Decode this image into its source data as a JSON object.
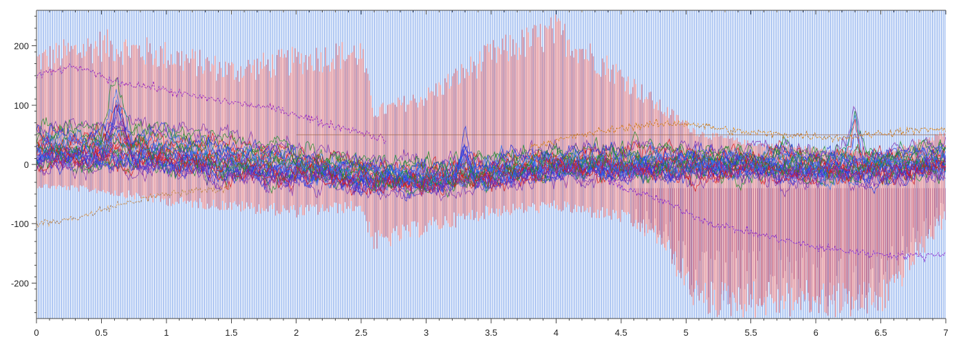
{
  "chart_data": {
    "type": "line",
    "title": "",
    "xlabel": "",
    "ylabel": "",
    "xlim": [
      0,
      7
    ],
    "ylim": [
      -260,
      260
    ],
    "x_ticks": [
      0,
      0.5,
      1,
      1.5,
      2,
      2.5,
      3,
      3.5,
      4,
      4.5,
      5,
      5.5,
      6,
      6.5,
      7
    ],
    "x_tick_labels": [
      "0",
      "0.5",
      "1",
      "1.5",
      "2",
      "2.5",
      "3",
      "3.5",
      "4",
      "4.5",
      "5",
      "5.5",
      "6",
      "6.5",
      "7"
    ],
    "y_ticks": [
      200,
      100,
      0,
      -100,
      -200
    ],
    "y_tick_labels": [
      "200",
      "100",
      "0",
      "-100",
      "-200"
    ],
    "grid": false,
    "legend": "none",
    "colors": {
      "background_bars": "#7fa6ec",
      "envelope": "#f08a8a",
      "dense_band": [
        "#1f2fe0",
        "#d81818",
        "#1c8a2a",
        "#7a2fb0",
        "#2a6ef0"
      ],
      "trace_upper": "#9a2fc0",
      "trace_lower": "#c08a50",
      "trace_orange": "#d08020",
      "trace_purple_low": "#8a2fd0",
      "reference_line": "#9a6040"
    },
    "series": [
      {
        "role": "upper-drifting-trace",
        "x": [
          0,
          0.3,
          0.6,
          0.9,
          1.2,
          1.5,
          1.8,
          2.0,
          2.2,
          2.5,
          2.7
        ],
        "y": [
          150,
          165,
          140,
          130,
          115,
          105,
          95,
          85,
          70,
          55,
          40
        ]
      },
      {
        "role": "lower-left-trace",
        "x": [
          0,
          0.2,
          0.4,
          0.6,
          0.8,
          1.0,
          1.2,
          1.5
        ],
        "y": [
          -100,
          -95,
          -85,
          -70,
          -60,
          -50,
          -45,
          -40
        ]
      },
      {
        "role": "right-orange-trace",
        "x": [
          3.8,
          4.2,
          4.6,
          5.0,
          5.4,
          5.8,
          6.2,
          6.6,
          7.0
        ],
        "y": [
          30,
          50,
          65,
          70,
          55,
          50,
          45,
          55,
          60
        ]
      },
      {
        "role": "lower-right-purple-trace",
        "x": [
          4.4,
          4.8,
          5.2,
          5.6,
          6.0,
          6.4,
          6.8,
          7.0
        ],
        "y": [
          -30,
          -60,
          -100,
          -120,
          -140,
          -150,
          -155,
          -150
        ]
      },
      {
        "role": "reference-line",
        "x": [
          2.0,
          7.0
        ],
        "y": [
          50,
          50
        ]
      },
      {
        "role": "center-band-mean",
        "x": [
          0,
          0.5,
          1.0,
          1.5,
          2.0,
          2.5,
          3.0,
          3.5,
          4.0,
          4.5,
          5.0,
          5.5,
          6.0,
          6.5,
          7.0
        ],
        "y": [
          30,
          30,
          25,
          10,
          0,
          -15,
          -20,
          -10,
          5,
          5,
          5,
          5,
          0,
          0,
          10
        ]
      }
    ],
    "envelope": {
      "x": [
        0,
        0.5,
        1.0,
        1.5,
        2.0,
        2.5,
        2.6,
        3.0,
        3.5,
        4.0,
        4.5,
        4.8,
        5.1,
        5.5,
        6.0,
        6.5,
        7.0
      ],
      "upper": [
        200,
        230,
        210,
        180,
        200,
        215,
        100,
        130,
        210,
        255,
        170,
        110,
        60,
        40,
        30,
        20,
        60
      ],
      "lower": [
        -40,
        -50,
        -70,
        -80,
        -90,
        -80,
        -150,
        -120,
        -90,
        -80,
        -100,
        -140,
        -260,
        -260,
        -260,
        -260,
        -100
      ]
    },
    "annotations": [
      {
        "x": 0.6,
        "y": 165,
        "label": ""
      },
      {
        "x": 3.3,
        "y": 80,
        "label": ""
      },
      {
        "x": 6.3,
        "y": 120,
        "label": ""
      }
    ]
  }
}
